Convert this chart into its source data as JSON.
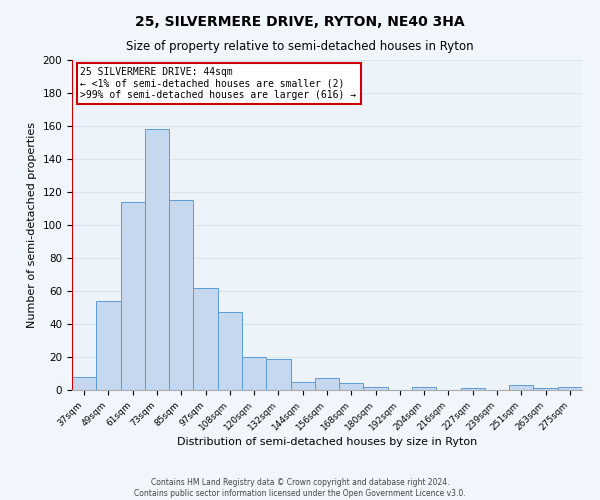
{
  "title": "25, SILVERMERE DRIVE, RYTON, NE40 3HA",
  "subtitle": "Size of property relative to semi-detached houses in Ryton",
  "xlabel": "Distribution of semi-detached houses by size in Ryton",
  "ylabel": "Number of semi-detached properties",
  "bar_heights": [
    8,
    54,
    114,
    158,
    115,
    62,
    47,
    20,
    19,
    5,
    7,
    4,
    2,
    0,
    2,
    0,
    1,
    0,
    3,
    1,
    2
  ],
  "bin_labels": [
    "37sqm",
    "49sqm",
    "61sqm",
    "73sqm",
    "85sqm",
    "97sqm",
    "108sqm",
    "120sqm",
    "132sqm",
    "144sqm",
    "156sqm",
    "168sqm",
    "180sqm",
    "192sqm",
    "204sqm",
    "216sqm",
    "227sqm",
    "239sqm",
    "251sqm",
    "263sqm",
    "275sqm"
  ],
  "bar_color": "#c5d8f0",
  "bar_edge_color": "#5b9bd5",
  "annotation_title": "25 SILVERMERE DRIVE: 44sqm",
  "annotation_line1": "← <1% of semi-detached houses are smaller (2)",
  "annotation_line2": ">99% of semi-detached houses are larger (616) →",
  "annotation_box_color": "#ffffff",
  "annotation_box_edge": "#cc0000",
  "vline_color": "#cc0000",
  "ylim": [
    0,
    200
  ],
  "yticks": [
    0,
    20,
    40,
    60,
    80,
    100,
    120,
    140,
    160,
    180,
    200
  ],
  "footer1": "Contains HM Land Registry data © Crown copyright and database right 2024.",
  "footer2": "Contains public sector information licensed under the Open Government Licence v3.0.",
  "background_color": "#ecf3fb",
  "grid_color": "#d8e4f0",
  "fig_background": "#f0f6fc",
  "title_fontsize": 10,
  "subtitle_fontsize": 8.5,
  "axis_label_fontsize": 8
}
